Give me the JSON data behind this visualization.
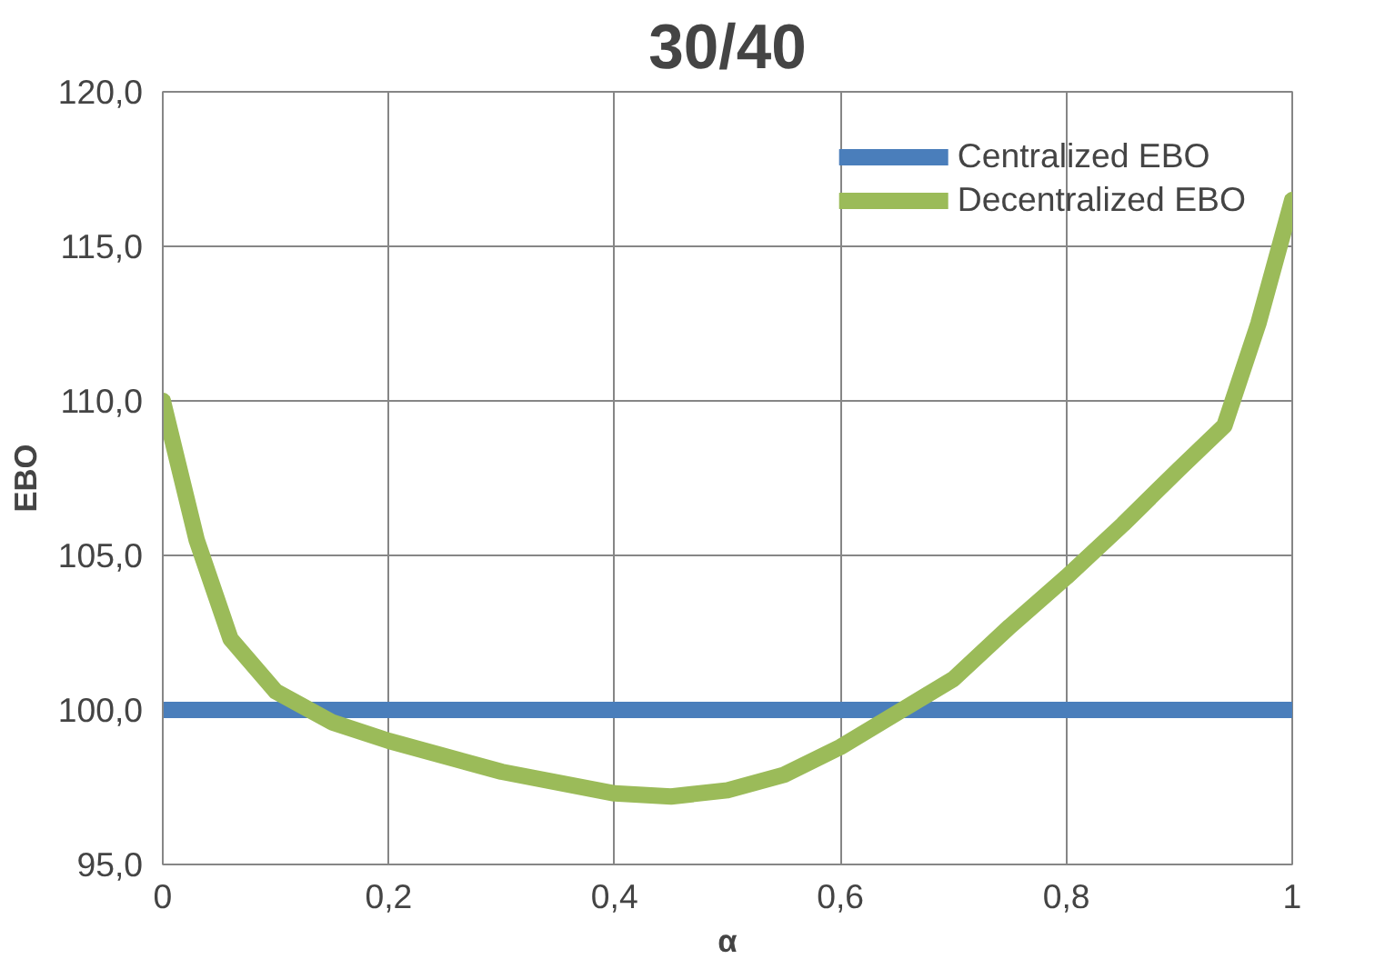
{
  "chart_data": {
    "type": "line",
    "title": "30/40",
    "xlabel": "α",
    "ylabel": "EBO",
    "xlim": [
      0,
      1
    ],
    "xticks": [
      0,
      {
        "value": 0.2,
        "label": "0,2"
      },
      {
        "value": 0.4,
        "label": "0,4"
      },
      {
        "value": 0.6,
        "label": "0,6"
      },
      {
        "value": 0.8,
        "label": "0,8"
      },
      1
    ],
    "ylim": [
      95,
      120
    ],
    "yticks": [
      {
        "value": 95,
        "label": "95,0"
      },
      {
        "value": 100,
        "label": "100,0"
      },
      {
        "value": 105,
        "label": "105,0"
      },
      {
        "value": 110,
        "label": "110,0"
      },
      {
        "value": 115,
        "label": "115,0"
      },
      {
        "value": 120,
        "label": "120,0"
      }
    ],
    "grid": true,
    "legend": "top right",
    "marker": "none",
    "line_style": "solid",
    "series": [
      {
        "name": "Centralized EBO",
        "color": "#4a7ebb",
        "x": [
          0,
          1
        ],
        "values": [
          100,
          100
        ]
      },
      {
        "name": "Decentralized EBO",
        "color": "#9bbb59",
        "x": [
          0,
          0.03,
          0.06,
          0.1,
          0.15,
          0.2,
          0.3,
          0.4,
          0.45,
          0.5,
          0.55,
          0.6,
          0.65,
          0.7,
          0.75,
          0.8,
          0.85,
          0.9,
          0.94,
          0.97,
          1
        ],
        "values": [
          110,
          105.5,
          102.3,
          100.6,
          99.6,
          99.0,
          98.0,
          97.3,
          97.2,
          97.4,
          97.9,
          98.8,
          99.9,
          101.0,
          102.7,
          104.3,
          106.0,
          107.8,
          109.2,
          112.5,
          116.5
        ]
      }
    ]
  }
}
